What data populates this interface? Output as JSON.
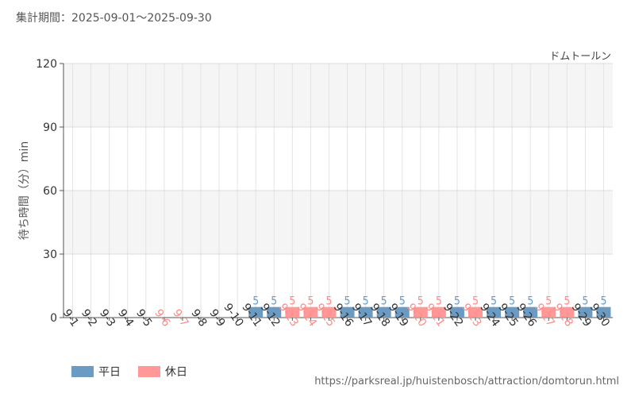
{
  "header": {
    "period_label": "集計期間：2025-09-01～2025-09-30"
  },
  "source_url": "https://parksreal.jp/huistenbosch/attraction/domtorun.html",
  "colors": {
    "weekday": "#6b9bc3",
    "holiday": "#ff9896",
    "weekday_text": "#6b9bc3",
    "holiday_text": "#ff8a88"
  },
  "chart_data": {
    "type": "bar",
    "title": "ドムトールン",
    "ylabel": "待ち時間（分）min",
    "xlabel": "",
    "ylim": [
      0,
      120
    ],
    "yticks": [
      0,
      30,
      60,
      90,
      120
    ],
    "grid": true,
    "legend_position": "bottom-left",
    "legend": [
      {
        "key": "weekday",
        "label": "平日"
      },
      {
        "key": "holiday",
        "label": "休日"
      }
    ],
    "categories": [
      "9-1",
      "9-2",
      "9-3",
      "9-4",
      "9-5",
      "9-6",
      "9-7",
      "9-8",
      "9-9",
      "9-10",
      "9-11",
      "9-12",
      "9-13",
      "9-14",
      "9-15",
      "9-16",
      "9-17",
      "9-18",
      "9-19",
      "9-20",
      "9-21",
      "9-22",
      "9-23",
      "9-24",
      "9-25",
      "9-26",
      "9-27",
      "9-28",
      "9-29",
      "9-30"
    ],
    "day_types": [
      "weekday",
      "weekday",
      "weekday",
      "weekday",
      "weekday",
      "holiday",
      "holiday",
      "weekday",
      "weekday",
      "weekday",
      "weekday",
      "weekday",
      "holiday",
      "holiday",
      "holiday",
      "weekday",
      "weekday",
      "weekday",
      "weekday",
      "holiday",
      "holiday",
      "weekday",
      "holiday",
      "weekday",
      "weekday",
      "weekday",
      "holiday",
      "holiday",
      "weekday",
      "weekday"
    ],
    "values": [
      null,
      null,
      null,
      null,
      null,
      null,
      null,
      null,
      null,
      null,
      5,
      5,
      5,
      5,
      5,
      5,
      5,
      5,
      5,
      5,
      5,
      5,
      5,
      5,
      5,
      5,
      5,
      5,
      5,
      5
    ]
  }
}
